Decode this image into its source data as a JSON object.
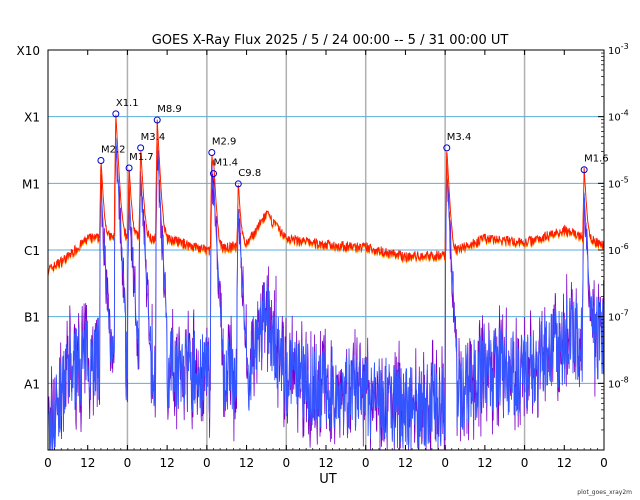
{
  "chart_data": {
    "type": "line",
    "title": "GOES X-Ray Flux   2025  /  5  /  24   00:00 --  5  /  31   00:00   UT",
    "xlabel": "UT",
    "x_start_day": 24,
    "x_days": 7,
    "x_tick_hours": [
      "0",
      "12",
      "0",
      "12",
      "0",
      "12",
      "0",
      "12",
      "0",
      "12",
      "0",
      "12",
      "0",
      "12",
      "0"
    ],
    "ylim": [
      1e-09,
      0.001
    ],
    "yscale": "log",
    "y_class_labels": [
      {
        "label": "X10",
        "value": 0.001
      },
      {
        "label": "X1",
        "value": 0.0001
      },
      {
        "label": "M1",
        "value": 1e-05
      },
      {
        "label": "C1",
        "value": 1e-06
      },
      {
        "label": "B1",
        "value": 1e-07
      },
      {
        "label": "A1",
        "value": 1e-08
      }
    ],
    "y_right_labels": [
      {
        "mantissa": "10",
        "exp": "-3",
        "value": 0.001
      },
      {
        "mantissa": "10",
        "exp": "-4",
        "value": 0.0001
      },
      {
        "mantissa": "10",
        "exp": "-5",
        "value": 1e-05
      },
      {
        "mantissa": "10",
        "exp": "-6",
        "value": 1e-06
      },
      {
        "mantissa": "10",
        "exp": "-7",
        "value": 1e-07
      },
      {
        "mantissa": "10",
        "exp": "-8",
        "value": 1e-08
      }
    ],
    "colors": {
      "long": "#ff1a00",
      "long_secondary": "#ffa500",
      "short": "#3355ff",
      "short_secondary": "#7a00cc",
      "class_lines": "#5aaee0",
      "day_lines": "#b0b0b0",
      "flare_marker": "#0000cc"
    },
    "flares": [
      {
        "label": "M2.2",
        "hour": 16.0,
        "flux": 2.2e-05
      },
      {
        "label": "X1.1",
        "hour": 20.5,
        "flux": 0.00011
      },
      {
        "label": "M1.7",
        "hour": 24.5,
        "flux": 1.7e-05
      },
      {
        "label": "M3.4",
        "hour": 28.0,
        "flux": 3.4e-05
      },
      {
        "label": "M8.9",
        "hour": 33.0,
        "flux": 8.9e-05
      },
      {
        "label": "M2.9",
        "hour": 49.5,
        "flux": 2.9e-05
      },
      {
        "label": "M1.4",
        "hour": 50.0,
        "flux": 1.4e-05
      },
      {
        "label": "C9.8",
        "hour": 57.5,
        "flux": 9.8e-06
      },
      {
        "label": "M3.4",
        "hour": 120.5,
        "flux": 3.4e-05
      },
      {
        "label": "M1.6",
        "hour": 162.0,
        "flux": 1.6e-05
      }
    ],
    "long_background": [
      {
        "hour": 0,
        "flux": 5e-07
      },
      {
        "hour": 6,
        "flux": 8e-07
      },
      {
        "hour": 12,
        "flux": 1.5e-06
      },
      {
        "hour": 24,
        "flux": 1.6e-06
      },
      {
        "hour": 36,
        "flux": 1.5e-06
      },
      {
        "hour": 48,
        "flux": 1e-06
      },
      {
        "hour": 60,
        "flux": 1.2e-06
      },
      {
        "hour": 66,
        "flux": 3.5e-06
      },
      {
        "hour": 72,
        "flux": 1.5e-06
      },
      {
        "hour": 84,
        "flux": 1.2e-06
      },
      {
        "hour": 96,
        "flux": 1.1e-06
      },
      {
        "hour": 108,
        "flux": 8e-07
      },
      {
        "hour": 120,
        "flux": 8.5e-07
      },
      {
        "hour": 132,
        "flux": 1.5e-06
      },
      {
        "hour": 144,
        "flux": 1.3e-06
      },
      {
        "hour": 156,
        "flux": 2e-06
      },
      {
        "hour": 168,
        "flux": 1.2e-06
      }
    ],
    "short_background": [
      {
        "hour": 0,
        "flux": 2e-09
      },
      {
        "hour": 6,
        "flux": 1.5e-08
      },
      {
        "hour": 12,
        "flux": 3e-08
      },
      {
        "hour": 24,
        "flux": 2.5e-08
      },
      {
        "hour": 36,
        "flux": 2e-08
      },
      {
        "hour": 48,
        "flux": 1.5e-08
      },
      {
        "hour": 60,
        "flux": 1.5e-08
      },
      {
        "hour": 66,
        "flux": 1.3e-07
      },
      {
        "hour": 72,
        "flux": 1.5e-08
      },
      {
        "hour": 84,
        "flux": 1e-08
      },
      {
        "hour": 96,
        "flux": 8e-09
      },
      {
        "hour": 108,
        "flux": 5e-09
      },
      {
        "hour": 120,
        "flux": 6e-09
      },
      {
        "hour": 132,
        "flux": 2e-08
      },
      {
        "hour": 144,
        "flux": 1.5e-08
      },
      {
        "hour": 156,
        "flux": 5e-08
      },
      {
        "hour": 168,
        "flux": 6e-08
      }
    ],
    "grid": true
  },
  "footer": "plot_goes_xray2m"
}
